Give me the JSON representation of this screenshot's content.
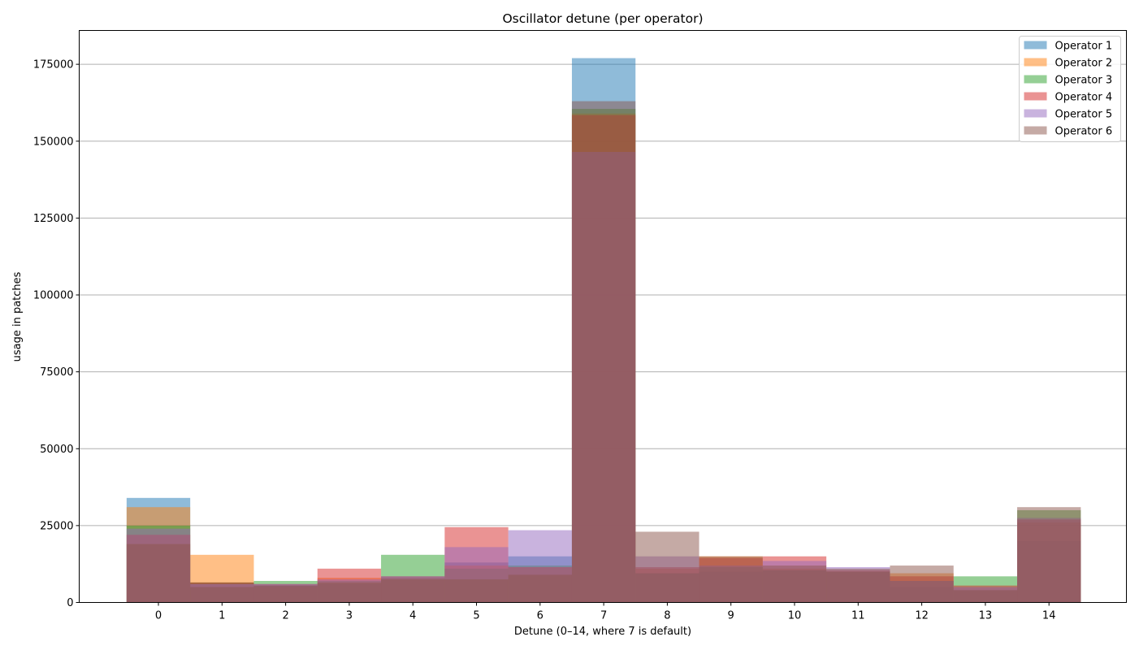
{
  "chart_data": {
    "type": "bar",
    "title": "Oscillator detune (per operator)",
    "xlabel": "Detune (0–14, where 7 is default)",
    "ylabel": "usage in patches",
    "categories": [
      "0",
      "1",
      "2",
      "3",
      "4",
      "5",
      "6",
      "7",
      "8",
      "9",
      "10",
      "11",
      "12",
      "13",
      "14"
    ],
    "ylim": [
      0,
      186000
    ],
    "yticks": [
      0,
      25000,
      50000,
      75000,
      100000,
      125000,
      150000,
      175000
    ],
    "grid": "y",
    "legend_position": "top-right",
    "opacity": 0.5,
    "series": [
      {
        "name": "Operator 1",
        "color": "#1f77b4",
        "values": [
          34000,
          6500,
          5500,
          6000,
          8000,
          13000,
          15000,
          177000,
          9500,
          10000,
          10500,
          10000,
          5000,
          4000,
          20000
        ]
      },
      {
        "name": "Operator 2",
        "color": "#ff7f0e",
        "values": [
          31000,
          15500,
          5000,
          8000,
          8000,
          12000,
          11500,
          159000,
          11000,
          15000,
          11000,
          10000,
          9500,
          5000,
          26000
        ]
      },
      {
        "name": "Operator 3",
        "color": "#2ca02c",
        "values": [
          25000,
          6500,
          7000,
          7000,
          15500,
          11000,
          12000,
          160500,
          9500,
          11500,
          10500,
          10000,
          7000,
          8500,
          30000
        ]
      },
      {
        "name": "Operator 4",
        "color": "#d62728",
        "values": [
          22000,
          6500,
          6000,
          11000,
          8500,
          24500,
          11500,
          158500,
          11500,
          14500,
          15000,
          10500,
          8500,
          5500,
          27000
        ]
      },
      {
        "name": "Operator 5",
        "color": "#9467bd",
        "values": [
          24000,
          6000,
          6000,
          7500,
          8500,
          18000,
          23500,
          146500,
          15000,
          12000,
          13500,
          11500,
          7000,
          5000,
          27500
        ]
      },
      {
        "name": "Operator 6",
        "color": "#8c564b",
        "values": [
          19000,
          5000,
          5500,
          6500,
          7500,
          7500,
          9000,
          163000,
          23000,
          15000,
          12000,
          11000,
          12000,
          4000,
          31000
        ]
      }
    ]
  }
}
